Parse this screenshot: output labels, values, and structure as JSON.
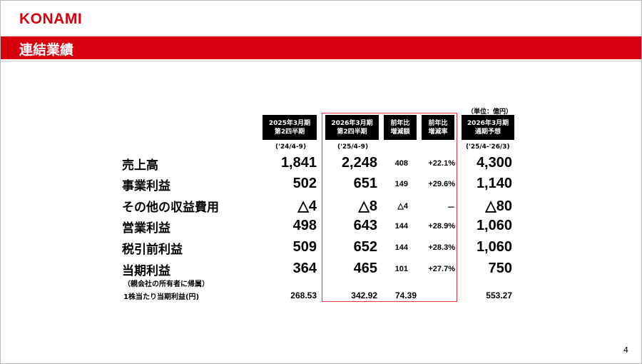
{
  "logo": "KONAMI",
  "title": "連結業績",
  "unit": "（単位：億円）",
  "columns": [
    {
      "header1": "2025年3月期",
      "header2": "第2四半期",
      "period": "('24/4-9)"
    },
    {
      "header1": "2026年3月期",
      "header2": "第2四半期",
      "period": "('25/4-9)"
    },
    {
      "header1": "前年比",
      "header2": "増減額",
      "period": ""
    },
    {
      "header1": "前年比",
      "header2": "増減率",
      "period": ""
    },
    {
      "header1": "2026年3月期",
      "header2": "通期予想",
      "period": "('25/4-'26/3)"
    }
  ],
  "rows": [
    {
      "label": "売上高",
      "values": [
        "1,841",
        "2,248",
        "408",
        "+22.1%",
        "4,300"
      ]
    },
    {
      "label": "事業利益",
      "values": [
        "502",
        "651",
        "149",
        "+29.6%",
        "1,140"
      ]
    },
    {
      "label": "その他の収益費用",
      "values": [
        "△4",
        "△8",
        "△4",
        "－",
        "△80"
      ]
    },
    {
      "label": "営業利益",
      "values": [
        "498",
        "643",
        "144",
        "+28.9%",
        "1,060"
      ]
    },
    {
      "label": "税引前利益",
      "values": [
        "509",
        "652",
        "144",
        "+28.3%",
        "1,060"
      ]
    },
    {
      "label": "当期利益",
      "values": [
        "364",
        "465",
        "101",
        "+27.7%",
        "750"
      ]
    }
  ],
  "net_income_note": "（親会社の所有者に帰属）",
  "eps": {
    "label": "1株当たり当期利益(円)",
    "values": [
      "268.53",
      "342.92",
      "74.39",
      "",
      "553.27"
    ]
  },
  "page_number": "4",
  "colors": {
    "brand": "#d7000f",
    "highlight_border": "#e8343c"
  }
}
